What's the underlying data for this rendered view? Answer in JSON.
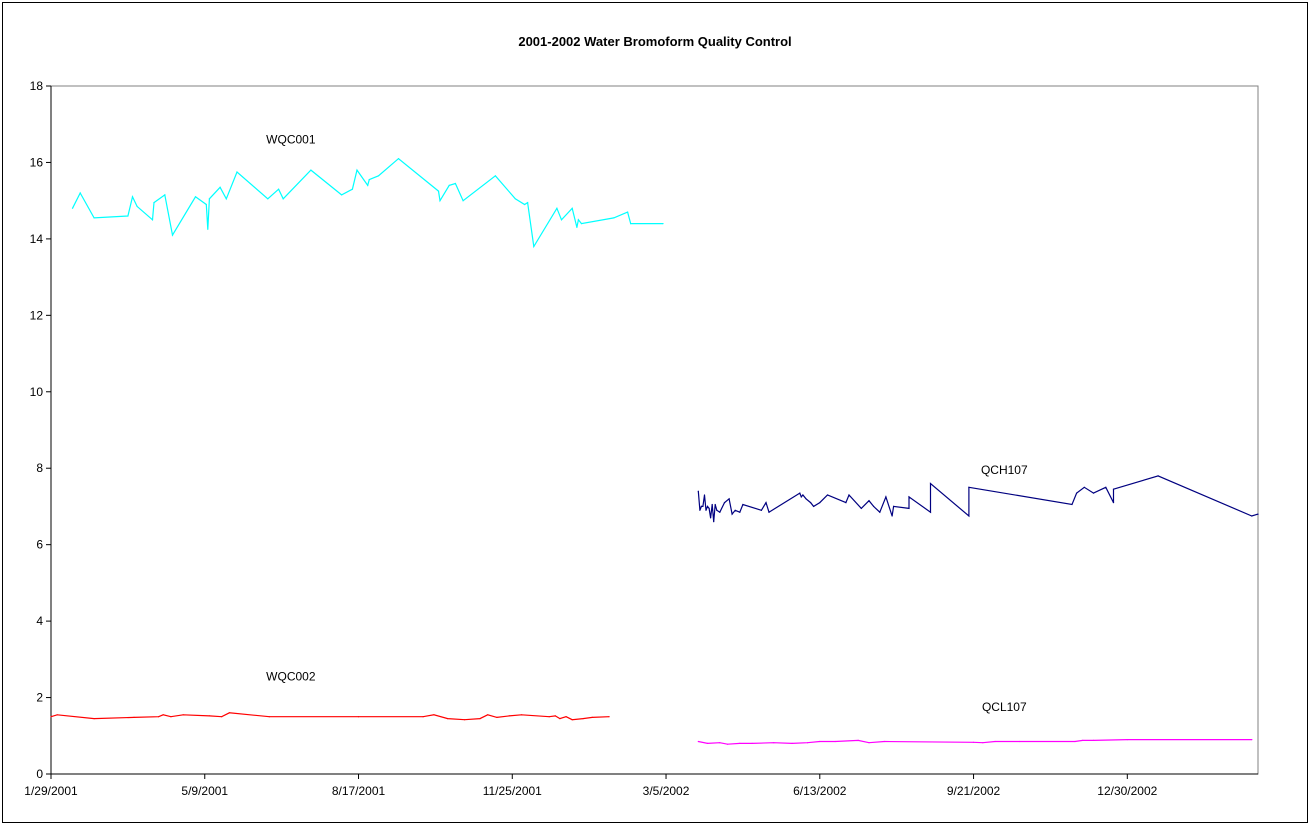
{
  "chart_data": {
    "type": "line",
    "title": "2001-2002 Water Bromoform Quality Control",
    "xlabel": "",
    "ylabel": "",
    "x_axis": {
      "type": "date",
      "range": [
        "1/29/2001",
        "3/25/2003"
      ],
      "tick_labels": [
        "1/29/2001",
        "5/9/2001",
        "8/17/2001",
        "11/25/2001",
        "3/5/2002",
        "6/13/2002",
        "9/21/2002",
        "12/30/2002"
      ]
    },
    "ylim": [
      0,
      18
    ],
    "y_ticks": [
      0,
      2,
      4,
      6,
      8,
      10,
      12,
      14,
      16,
      18
    ],
    "grid": false,
    "legend": "none",
    "series": [
      {
        "name": "WQC001",
        "color": "#00FFFF",
        "label_anchor": {
          "x": "2001-07-04",
          "y": 16.5
        },
        "points": [
          [
            "2001-02-12",
            14.8
          ],
          [
            "2001-02-17",
            15.2
          ],
          [
            "2001-02-26",
            14.55
          ],
          [
            "2001-03-20",
            14.6
          ],
          [
            "2001-03-23",
            15.1
          ],
          [
            "2001-03-26",
            14.85
          ],
          [
            "2001-04-05",
            14.5
          ],
          [
            "2001-04-06",
            14.95
          ],
          [
            "2001-04-13",
            15.15
          ],
          [
            "2001-04-18",
            14.1
          ],
          [
            "2001-05-03",
            15.1
          ],
          [
            "2001-05-10",
            14.9
          ],
          [
            "2001-05-11",
            14.25
          ],
          [
            "2001-05-12",
            15.05
          ],
          [
            "2001-05-19",
            15.35
          ],
          [
            "2001-05-23",
            15.05
          ],
          [
            "2001-05-30",
            15.75
          ],
          [
            "2001-06-19",
            15.05
          ],
          [
            "2001-06-26",
            15.3
          ],
          [
            "2001-06-29",
            15.05
          ],
          [
            "2001-07-17",
            15.8
          ],
          [
            "2001-08-06",
            15.15
          ],
          [
            "2001-08-13",
            15.3
          ],
          [
            "2001-08-16",
            15.8
          ],
          [
            "2001-08-23",
            15.4
          ],
          [
            "2001-08-24",
            15.55
          ],
          [
            "2001-08-30",
            15.65
          ],
          [
            "2001-09-12",
            16.1
          ],
          [
            "2001-10-08",
            15.25
          ],
          [
            "2001-10-09",
            15.0
          ],
          [
            "2001-10-15",
            15.4
          ],
          [
            "2001-10-19",
            15.45
          ],
          [
            "2001-10-24",
            15.0
          ],
          [
            "2001-11-14",
            15.65
          ],
          [
            "2001-11-27",
            15.05
          ],
          [
            "2001-12-03",
            14.9
          ],
          [
            "2001-12-05",
            14.95
          ],
          [
            "2001-12-09",
            13.8
          ],
          [
            "2001-12-24",
            14.8
          ],
          [
            "2001-12-27",
            14.5
          ],
          [
            "2002-01-03",
            14.8
          ],
          [
            "2002-01-06",
            14.3
          ],
          [
            "2002-01-07",
            14.5
          ],
          [
            "2002-01-09",
            14.4
          ],
          [
            "2002-01-30",
            14.55
          ],
          [
            "2002-02-08",
            14.7
          ],
          [
            "2002-02-10",
            14.4
          ],
          [
            "2002-03-03",
            14.4
          ]
        ]
      },
      {
        "name": "WQC002",
        "color": "#FF0000",
        "label_anchor": {
          "x": "2001-07-04",
          "y": 2.45
        },
        "points": [
          [
            "2001-01-29",
            1.5
          ],
          [
            "2001-02-02",
            1.55
          ],
          [
            "2001-02-26",
            1.45
          ],
          [
            "2001-03-24",
            1.48
          ],
          [
            "2001-04-09",
            1.5
          ],
          [
            "2001-04-12",
            1.55
          ],
          [
            "2001-04-17",
            1.5
          ],
          [
            "2001-04-25",
            1.55
          ],
          [
            "2001-05-12",
            1.52
          ],
          [
            "2001-05-20",
            1.5
          ],
          [
            "2001-05-25",
            1.6
          ],
          [
            "2001-06-20",
            1.5
          ],
          [
            "2001-08-17",
            1.5
          ],
          [
            "2001-09-28",
            1.5
          ],
          [
            "2001-10-05",
            1.55
          ],
          [
            "2001-10-14",
            1.45
          ],
          [
            "2001-10-25",
            1.42
          ],
          [
            "2001-11-04",
            1.45
          ],
          [
            "2001-11-09",
            1.55
          ],
          [
            "2001-11-15",
            1.48
          ],
          [
            "2001-11-23",
            1.52
          ],
          [
            "2001-12-01",
            1.55
          ],
          [
            "2001-12-19",
            1.5
          ],
          [
            "2001-12-23",
            1.52
          ],
          [
            "2001-12-26",
            1.45
          ],
          [
            "2001-12-30",
            1.5
          ],
          [
            "2002-01-03",
            1.42
          ],
          [
            "2002-01-10",
            1.45
          ],
          [
            "2002-01-16",
            1.48
          ],
          [
            "2002-01-27",
            1.5
          ]
        ]
      },
      {
        "name": "QCH107",
        "color": "#000080",
        "label_anchor": {
          "x": "2002-10-11",
          "y": 7.85
        },
        "points": [
          [
            "2002-03-26",
            7.4
          ],
          [
            "2002-03-27",
            6.9
          ],
          [
            "2002-03-28",
            7.0
          ],
          [
            "2002-03-29",
            7.0
          ],
          [
            "2002-03-30",
            7.3
          ],
          [
            "2002-03-31",
            6.9
          ],
          [
            "2002-04-01",
            7.0
          ],
          [
            "2002-04-02",
            6.95
          ],
          [
            "2002-04-03",
            6.7
          ],
          [
            "2002-04-04",
            7.05
          ],
          [
            "2002-04-05",
            6.6
          ],
          [
            "2002-04-06",
            7.05
          ],
          [
            "2002-04-07",
            6.9
          ],
          [
            "2002-04-09",
            6.85
          ],
          [
            "2002-04-12",
            7.1
          ],
          [
            "2002-04-15",
            7.2
          ],
          [
            "2002-04-17",
            6.8
          ],
          [
            "2002-04-19",
            6.9
          ],
          [
            "2002-04-22",
            6.85
          ],
          [
            "2002-04-24",
            7.05
          ],
          [
            "2002-05-06",
            6.9
          ],
          [
            "2002-05-09",
            7.1
          ],
          [
            "2002-05-11",
            6.85
          ],
          [
            "2002-05-31",
            7.35
          ],
          [
            "2002-06-01",
            7.25
          ],
          [
            "2002-06-02",
            7.3
          ],
          [
            "2002-06-04",
            7.2
          ],
          [
            "2002-06-07",
            7.1
          ],
          [
            "2002-06-09",
            7.0
          ],
          [
            "2002-06-13",
            7.1
          ],
          [
            "2002-06-18",
            7.3
          ],
          [
            "2002-06-30",
            7.1
          ],
          [
            "2002-07-02",
            7.3
          ],
          [
            "2002-07-10",
            6.95
          ],
          [
            "2002-07-15",
            7.15
          ],
          [
            "2002-07-18",
            7.0
          ],
          [
            "2002-07-22",
            6.85
          ],
          [
            "2002-07-26",
            7.25
          ],
          [
            "2002-07-30",
            6.75
          ],
          [
            "2002-07-31",
            7.0
          ],
          [
            "2002-08-10",
            6.95
          ],
          [
            "2002-08-10",
            7.25
          ],
          [
            "2002-08-24",
            6.85
          ],
          [
            "2002-08-24",
            7.6
          ],
          [
            "2002-09-18",
            6.75
          ],
          [
            "2002-09-18",
            7.5
          ],
          [
            "2002-11-24",
            7.05
          ],
          [
            "2002-11-27",
            7.35
          ],
          [
            "2002-12-02",
            7.5
          ],
          [
            "2002-12-08",
            7.35
          ],
          [
            "2002-12-16",
            7.5
          ],
          [
            "2002-12-21",
            7.1
          ],
          [
            "2002-12-21",
            7.45
          ],
          [
            "2003-01-19",
            7.8
          ],
          [
            "2003-03-21",
            6.75
          ],
          [
            "2003-03-25",
            6.8
          ]
        ]
      },
      {
        "name": "QCL107",
        "color": "#FF00FF",
        "label_anchor": {
          "x": "2002-10-11",
          "y": 1.65
        },
        "points": [
          [
            "2002-03-26",
            0.85
          ],
          [
            "2002-04-01",
            0.8
          ],
          [
            "2002-04-09",
            0.82
          ],
          [
            "2002-04-14",
            0.78
          ],
          [
            "2002-04-22",
            0.8
          ],
          [
            "2002-04-30",
            0.8
          ],
          [
            "2002-05-14",
            0.82
          ],
          [
            "2002-05-26",
            0.8
          ],
          [
            "2002-06-05",
            0.82
          ],
          [
            "2002-06-13",
            0.85
          ],
          [
            "2002-06-23",
            0.85
          ],
          [
            "2002-07-08",
            0.88
          ],
          [
            "2002-07-15",
            0.82
          ],
          [
            "2002-07-25",
            0.85
          ],
          [
            "2002-09-21",
            0.83
          ],
          [
            "2002-09-27",
            0.82
          ],
          [
            "2002-10-05",
            0.85
          ],
          [
            "2002-10-21",
            0.85
          ],
          [
            "2002-11-26",
            0.85
          ],
          [
            "2002-12-01",
            0.88
          ],
          [
            "2002-12-08",
            0.88
          ],
          [
            "2002-12-30",
            0.9
          ],
          [
            "2003-03-21",
            0.9
          ]
        ]
      }
    ]
  }
}
